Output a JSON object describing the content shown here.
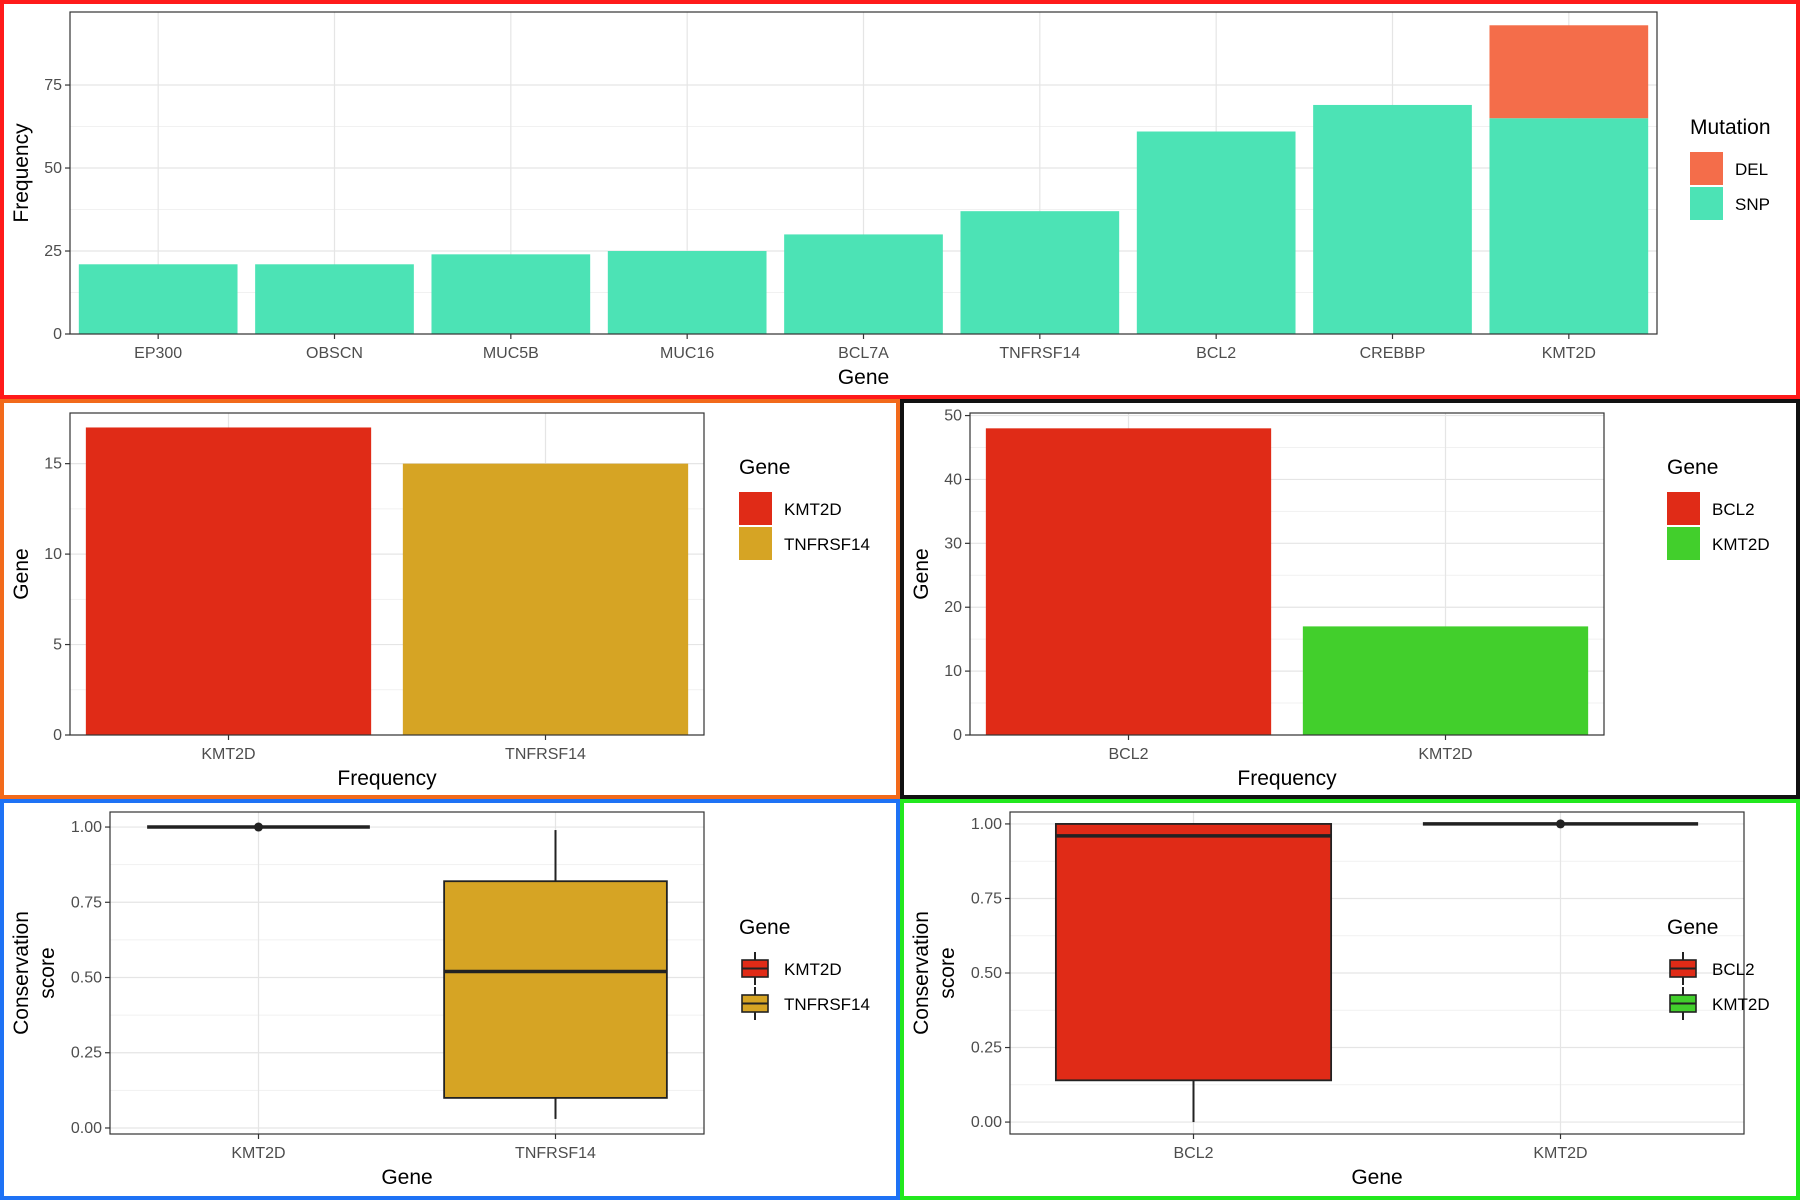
{
  "chart_data": [
    {
      "id": "top",
      "type": "bar",
      "stacked": true,
      "xlabel": "Gene",
      "ylabel": "Frequency",
      "categories": [
        "EP300",
        "OBSCN",
        "MUC5B",
        "MUC16",
        "BCL7A",
        "TNFRSF14",
        "BCL2",
        "CREBBP",
        "KMT2D"
      ],
      "series": [
        {
          "name": "SNP",
          "color": "#4ce3b5",
          "values": [
            21,
            21,
            24,
            25,
            30,
            37,
            61,
            69,
            65
          ]
        },
        {
          "name": "DEL",
          "color": "#f46d4a",
          "values": [
            0,
            0,
            0,
            0,
            0,
            0,
            0,
            0,
            28
          ]
        }
      ],
      "ylim": [
        0,
        97
      ],
      "yticks": [
        0,
        25,
        50,
        75
      ],
      "grid": true,
      "legend": {
        "title": "Mutation",
        "entries": [
          "DEL",
          "SNP"
        ],
        "colors": [
          "#f46d4a",
          "#4ce3b5"
        ],
        "placement": "right"
      }
    },
    {
      "id": "mid_left",
      "type": "bar",
      "xlabel": "Frequency",
      "ylabel": "Gene",
      "categories": [
        "KMT2D",
        "TNFRSF14"
      ],
      "values": [
        17,
        15
      ],
      "colors": [
        "#e02b17",
        "#d6a424"
      ],
      "ylim": [
        0,
        17.8
      ],
      "yticks": [
        0,
        5,
        10,
        15
      ],
      "grid": true,
      "legend": {
        "title": "Gene",
        "entries": [
          "KMT2D",
          "TNFRSF14"
        ],
        "colors": [
          "#e02b17",
          "#d6a424"
        ],
        "placement": "right"
      }
    },
    {
      "id": "mid_right",
      "type": "bar",
      "xlabel": "Frequency",
      "ylabel": "Gene",
      "categories": [
        "BCL2",
        "KMT2D"
      ],
      "values": [
        48,
        17
      ],
      "colors": [
        "#e02b17",
        "#42cf2c"
      ],
      "ylim": [
        0,
        50.4
      ],
      "yticks": [
        0,
        10,
        20,
        30,
        40,
        50
      ],
      "grid": true,
      "legend": {
        "title": "Gene",
        "entries": [
          "BCL2",
          "KMT2D"
        ],
        "colors": [
          "#e02b17",
          "#42cf2c"
        ],
        "placement": "right"
      }
    },
    {
      "id": "bot_left",
      "type": "box",
      "xlabel": "Gene",
      "ylabel": "Conservation score",
      "categories": [
        "KMT2D",
        "TNFRSF14"
      ],
      "boxes": [
        {
          "min": 1.0,
          "q1": 1.0,
          "median": 1.0,
          "q3": 1.0,
          "max": 1.0,
          "outliers": [
            1.0
          ]
        },
        {
          "min": 0.03,
          "q1": 0.1,
          "median": 0.52,
          "q3": 0.82,
          "max": 0.99,
          "outliers": []
        }
      ],
      "colors": [
        "#e02b17",
        "#d6a424"
      ],
      "ylim": [
        -0.02,
        1.05
      ],
      "yticks": [
        0.0,
        0.25,
        0.5,
        0.75,
        1.0
      ],
      "ytick_labels": [
        "0.00",
        "0.25",
        "0.50",
        "0.75",
        "1.00"
      ],
      "grid": true,
      "legend": {
        "title": "Gene",
        "entries": [
          "KMT2D",
          "TNFRSF14"
        ],
        "colors": [
          "#e02b17",
          "#d6a424"
        ],
        "placement": "right"
      }
    },
    {
      "id": "bot_right",
      "type": "box",
      "xlabel": "Gene",
      "ylabel": "Conservation score",
      "categories": [
        "BCL2",
        "KMT2D"
      ],
      "boxes": [
        {
          "min": 0.0,
          "q1": 0.14,
          "median": 0.96,
          "q3": 1.0,
          "max": 1.0,
          "outliers": []
        },
        {
          "min": 1.0,
          "q1": 1.0,
          "median": 1.0,
          "q3": 1.0,
          "max": 1.0,
          "outliers": [
            1.0
          ]
        }
      ],
      "colors": [
        "#e02b17",
        "#42cf2c"
      ],
      "ylim": [
        -0.04,
        1.04
      ],
      "yticks": [
        0.0,
        0.25,
        0.5,
        0.75,
        1.0
      ],
      "ytick_labels": [
        "0.00",
        "0.25",
        "0.50",
        "0.75",
        "1.00"
      ],
      "grid": true,
      "legend": {
        "title": "Gene",
        "entries": [
          "BCL2",
          "KMT2D"
        ],
        "colors": [
          "#e02b17",
          "#42cf2c"
        ],
        "placement": "right"
      }
    }
  ]
}
